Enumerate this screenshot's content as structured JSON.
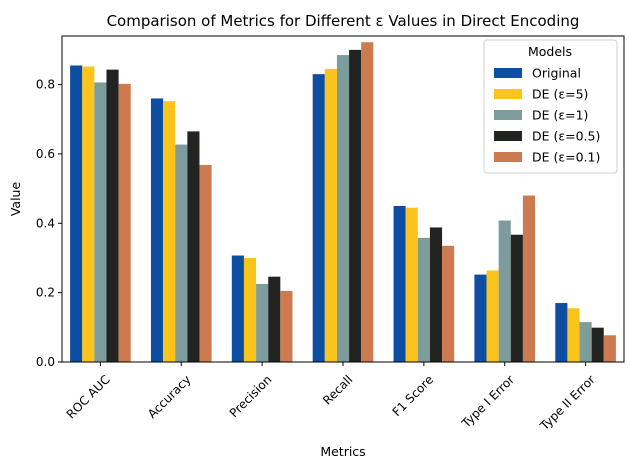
{
  "chart_data": {
    "type": "bar",
    "title": "Comparison of Metrics for Different ε Values in Direct Encoding",
    "xlabel": "Metrics",
    "ylabel": "Value",
    "ylim": [
      0,
      0.94
    ],
    "yticks": [
      "0.0",
      "0.2",
      "0.4",
      "0.6",
      "0.8"
    ],
    "grid": false,
    "legend_title": "Models",
    "legend_position": "top-right",
    "categories": [
      "ROC AUC",
      "Accuracy",
      "Precision",
      "Recall",
      "F1 Score",
      "Type I Error",
      "Type II Error"
    ],
    "series": [
      {
        "name": "Original",
        "color": "#0d4ea2",
        "values": [
          0.855,
          0.76,
          0.307,
          0.83,
          0.45,
          0.252,
          0.17
        ]
      },
      {
        "name": "DE (ε=5)",
        "color": "#fbc41d",
        "values": [
          0.852,
          0.752,
          0.3,
          0.845,
          0.445,
          0.264,
          0.155
        ]
      },
      {
        "name": "DE (ε=1)",
        "color": "#7e9c9c",
        "values": [
          0.806,
          0.627,
          0.225,
          0.885,
          0.358,
          0.408,
          0.115
        ]
      },
      {
        "name": "DE (ε=0.5)",
        "color": "#222422",
        "values": [
          0.843,
          0.665,
          0.246,
          0.9,
          0.388,
          0.367,
          0.099
        ]
      },
      {
        "name": "DE (ε=0.1)",
        "color": "#cb7b4f",
        "values": [
          0.802,
          0.568,
          0.205,
          0.922,
          0.335,
          0.48,
          0.077
        ]
      }
    ]
  }
}
